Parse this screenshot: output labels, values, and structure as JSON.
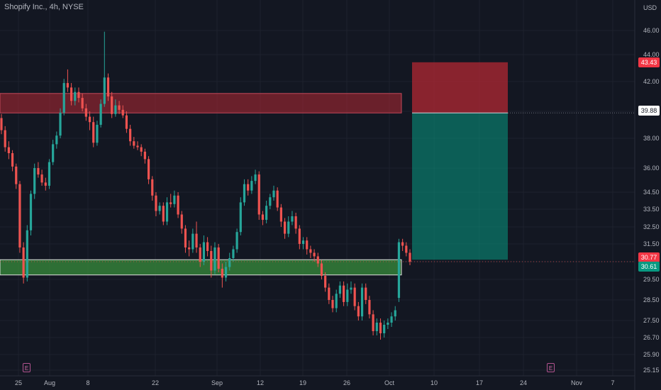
{
  "header": {
    "title": "Shopify Inc., 4h, NYSE"
  },
  "events": [
    {
      "label": "E"
    },
    {
      "label": "E"
    }
  ],
  "chart_data": {
    "type": "candlestick",
    "currency": "USD",
    "y_ticks": [
      "46.00",
      "44.00",
      "42.00",
      "40.00",
      "38.00",
      "36.00",
      "34.50",
      "33.50",
      "32.50",
      "31.50",
      "30.50",
      "29.50",
      "28.50",
      "27.50",
      "26.70",
      "25.90",
      "25.15"
    ],
    "y_range": [
      25.15,
      46.0
    ],
    "x_ticks": [
      "25",
      "Aug",
      "8",
      "22",
      "Sep",
      "12",
      "19",
      "26",
      "Oct",
      "10",
      "17",
      "24",
      "Nov",
      "7"
    ],
    "price_labels": [
      {
        "text": "43.43",
        "kind": "stop"
      },
      {
        "text": "39.88",
        "kind": "neutral"
      },
      {
        "text": "30.77",
        "kind": "stop"
      },
      {
        "text": "30.61",
        "kind": "target"
      }
    ],
    "zones": [
      {
        "name": "resistance",
        "from": 39.88,
        "to": 41.2
      },
      {
        "name": "support",
        "from": 29.75,
        "to": 30.61
      }
    ],
    "position": {
      "side": "short",
      "entry": 39.88,
      "stop": 43.43,
      "target": 30.61
    },
    "candles": [
      [
        39.5,
        39.8,
        38.3,
        38.6
      ],
      [
        38.6,
        38.9,
        37.1,
        37.4
      ],
      [
        37.4,
        37.8,
        36.6,
        37.0
      ],
      [
        37.0,
        37.2,
        35.8,
        36.1
      ],
      [
        36.1,
        36.3,
        34.7,
        35.0
      ],
      [
        35.0,
        35.2,
        31.0,
        31.3
      ],
      [
        31.3,
        31.6,
        29.3,
        29.6
      ],
      [
        29.6,
        32.6,
        29.4,
        32.3
      ],
      [
        32.3,
        34.6,
        32.0,
        34.4
      ],
      [
        34.4,
        36.3,
        34.1,
        36.0
      ],
      [
        36.0,
        36.4,
        35.4,
        35.6
      ],
      [
        35.6,
        35.9,
        34.9,
        35.1
      ],
      [
        35.1,
        35.4,
        34.6,
        34.9
      ],
      [
        34.9,
        36.6,
        34.7,
        36.4
      ],
      [
        36.4,
        37.9,
        36.2,
        37.6
      ],
      [
        37.6,
        38.5,
        37.3,
        38.2
      ],
      [
        38.2,
        40.2,
        38.0,
        39.9
      ],
      [
        39.9,
        42.2,
        39.7,
        41.9
      ],
      [
        41.9,
        42.9,
        41.3,
        41.6
      ],
      [
        41.6,
        41.9,
        40.4,
        40.7
      ],
      [
        40.7,
        41.6,
        40.4,
        41.3
      ],
      [
        41.3,
        41.6,
        40.6,
        40.9
      ],
      [
        40.9,
        41.2,
        40.0,
        40.2
      ],
      [
        40.2,
        40.5,
        39.3,
        39.6
      ],
      [
        39.6,
        40.0,
        38.6,
        39.2
      ],
      [
        39.2,
        39.6,
        37.4,
        37.7
      ],
      [
        37.7,
        39.3,
        37.5,
        39.0
      ],
      [
        39.0,
        40.8,
        38.8,
        40.5
      ],
      [
        40.5,
        45.9,
        40.3,
        42.3
      ],
      [
        42.3,
        42.6,
        40.7,
        41.0
      ],
      [
        41.0,
        41.3,
        39.5,
        39.8
      ],
      [
        39.8,
        40.8,
        39.6,
        40.4
      ],
      [
        40.4,
        40.7,
        39.8,
        40.1
      ],
      [
        40.1,
        40.4,
        39.5,
        39.7
      ],
      [
        39.7,
        40.0,
        38.4,
        38.7
      ],
      [
        38.7,
        39.0,
        37.5,
        37.8
      ],
      [
        37.8,
        38.1,
        37.3,
        37.5
      ],
      [
        37.5,
        37.8,
        37.2,
        37.4
      ],
      [
        37.4,
        37.6,
        36.8,
        37.1
      ],
      [
        37.1,
        37.3,
        36.3,
        36.6
      ],
      [
        36.6,
        36.8,
        35.0,
        35.3
      ],
      [
        35.3,
        35.5,
        34.0,
        34.3
      ],
      [
        34.3,
        34.5,
        33.1,
        33.4
      ],
      [
        33.4,
        33.9,
        33.2,
        33.7
      ],
      [
        33.7,
        33.9,
        32.6,
        32.8
      ],
      [
        32.8,
        34.2,
        32.6,
        33.9
      ],
      [
        33.9,
        34.4,
        33.6,
        33.8
      ],
      [
        33.8,
        34.6,
        33.6,
        34.3
      ],
      [
        34.3,
        34.5,
        33.0,
        33.2
      ],
      [
        33.2,
        33.4,
        32.1,
        32.4
      ],
      [
        32.4,
        32.6,
        31.0,
        31.3
      ],
      [
        31.3,
        31.7,
        30.8,
        31.2
      ],
      [
        31.2,
        32.4,
        31.0,
        32.1
      ],
      [
        32.1,
        32.8,
        31.0,
        31.3
      ],
      [
        31.3,
        31.5,
        30.2,
        30.5
      ],
      [
        30.5,
        32.0,
        30.3,
        31.6
      ],
      [
        31.6,
        31.9,
        30.8,
        31.1
      ],
      [
        31.1,
        31.4,
        29.6,
        30.0
      ],
      [
        30.0,
        31.6,
        29.8,
        31.3
      ],
      [
        31.3,
        31.5,
        29.9,
        30.1
      ],
      [
        30.1,
        30.4,
        29.1,
        29.6
      ],
      [
        29.6,
        30.5,
        29.4,
        30.2
      ],
      [
        30.2,
        31.0,
        30.0,
        30.7
      ],
      [
        30.7,
        31.4,
        30.5,
        31.2
      ],
      [
        31.2,
        32.4,
        31.0,
        32.2
      ],
      [
        32.2,
        34.2,
        32.0,
        33.9
      ],
      [
        33.9,
        35.3,
        33.7,
        35.0
      ],
      [
        35.0,
        35.3,
        34.3,
        34.6
      ],
      [
        34.6,
        35.5,
        34.4,
        35.2
      ],
      [
        35.2,
        35.9,
        35.0,
        35.6
      ],
      [
        35.6,
        35.8,
        32.9,
        33.2
      ],
      [
        33.2,
        33.4,
        32.6,
        32.9
      ],
      [
        32.9,
        34.0,
        32.7,
        33.7
      ],
      [
        33.7,
        34.4,
        33.5,
        34.2
      ],
      [
        34.2,
        34.9,
        34.0,
        34.6
      ],
      [
        34.6,
        34.8,
        33.4,
        33.6
      ],
      [
        33.6,
        33.8,
        32.5,
        32.8
      ],
      [
        32.8,
        33.0,
        31.8,
        32.1
      ],
      [
        32.1,
        33.1,
        31.9,
        32.8
      ],
      [
        32.8,
        33.4,
        32.6,
        33.1
      ],
      [
        33.1,
        33.3,
        32.1,
        32.4
      ],
      [
        32.4,
        32.6,
        31.2,
        31.5
      ],
      [
        31.5,
        31.9,
        31.2,
        31.7
      ],
      [
        31.7,
        31.9,
        30.9,
        31.2
      ],
      [
        31.2,
        31.4,
        30.7,
        31.0
      ],
      [
        31.0,
        31.2,
        30.5,
        30.8
      ],
      [
        30.8,
        31.0,
        30.2,
        30.4
      ],
      [
        30.4,
        30.6,
        29.5,
        29.7
      ],
      [
        29.7,
        29.9,
        28.9,
        29.1
      ],
      [
        29.1,
        29.3,
        28.3,
        28.5
      ],
      [
        28.5,
        28.7,
        27.9,
        28.1
      ],
      [
        28.1,
        29.0,
        27.9,
        28.8
      ],
      [
        28.8,
        29.4,
        28.6,
        29.2
      ],
      [
        29.2,
        29.4,
        28.2,
        28.4
      ],
      [
        28.4,
        29.3,
        28.2,
        29.0
      ],
      [
        29.0,
        29.4,
        28.8,
        29.1
      ],
      [
        29.1,
        29.3,
        28.0,
        28.2
      ],
      [
        28.2,
        28.4,
        27.5,
        27.7
      ],
      [
        27.7,
        29.3,
        27.5,
        29.1
      ],
      [
        29.1,
        29.3,
        28.3,
        28.5
      ],
      [
        28.5,
        28.7,
        27.6,
        27.8
      ],
      [
        27.8,
        28.0,
        26.8,
        27.0
      ],
      [
        27.0,
        27.6,
        26.8,
        27.4
      ],
      [
        27.4,
        27.6,
        26.6,
        26.9
      ],
      [
        26.9,
        27.5,
        26.7,
        27.3
      ],
      [
        27.3,
        27.6,
        27.1,
        27.4
      ],
      [
        27.4,
        27.9,
        27.2,
        27.7
      ],
      [
        27.7,
        28.2,
        27.5,
        28.0
      ],
      [
        28.6,
        31.8,
        28.4,
        31.6
      ],
      [
        31.6,
        31.8,
        31.1,
        31.4
      ],
      [
        31.4,
        31.6,
        30.8,
        31.0
      ],
      [
        31.0,
        31.2,
        30.3,
        30.5
      ]
    ]
  }
}
